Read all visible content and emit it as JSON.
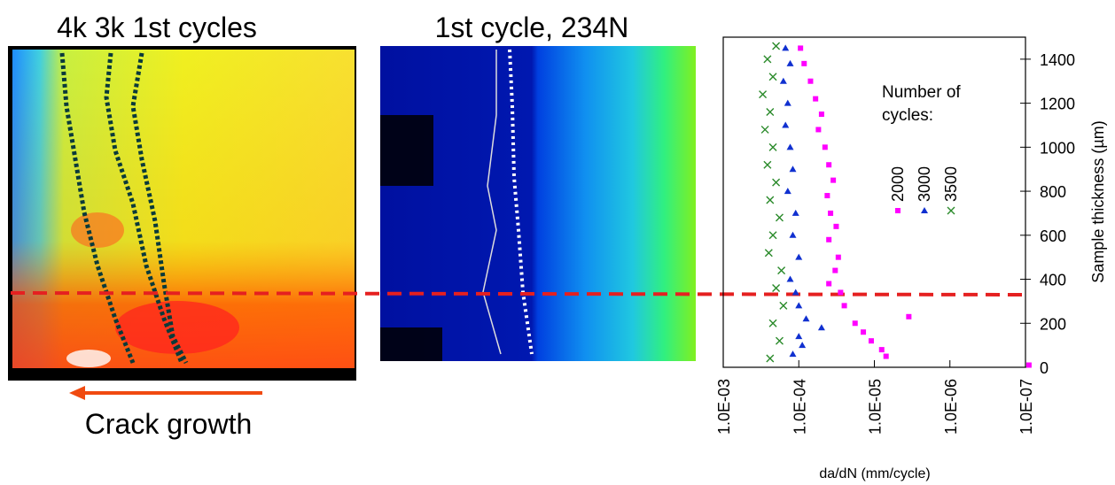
{
  "panels": [
    {
      "title": "4k 3k 1st cycles",
      "caption": "Crack growth"
    },
    {
      "title": "1st cycle, 234N"
    }
  ],
  "chart_data": {
    "type": "scatter",
    "xlabel": "da/dN (mm/cycle)",
    "ylabel": "Sample thickness (µm)",
    "legend_title": "Number of cycles:",
    "xscale": "log",
    "y_axis_side": "right",
    "xlim": [
      0.001,
      1e-07
    ],
    "ylim": [
      0,
      1500
    ],
    "xticks": [
      {
        "value": 0.001,
        "label": "1.0E-03"
      },
      {
        "value": 0.0001,
        "label": "1.0E-04"
      },
      {
        "value": 1e-05,
        "label": "1.0E-05"
      },
      {
        "value": 1e-06,
        "label": "1.0E-06"
      },
      {
        "value": 1e-07,
        "label": "1.0E-07"
      }
    ],
    "yticks": [
      0,
      200,
      400,
      600,
      800,
      1000,
      1200,
      1400
    ],
    "series": [
      {
        "name": "2000",
        "color": "#ff00ff",
        "marker": "square",
        "x": [
          9.5e-05,
          8.5e-05,
          7e-05,
          6e-05,
          5e-05,
          5.5e-05,
          4.5e-05,
          4e-05,
          3.5e-05,
          4.2e-05,
          3.8e-05,
          3.2e-05,
          4e-05,
          3e-05,
          3.3e-05,
          4e-05,
          2.8e-05,
          2.5e-05,
          3.5e-06,
          1.8e-05,
          1.4e-05,
          1.1e-05,
          8e-06,
          7e-06,
          9e-08
        ],
        "y": [
          1450,
          1380,
          1300,
          1220,
          1150,
          1080,
          1000,
          920,
          850,
          780,
          700,
          640,
          580,
          500,
          440,
          380,
          340,
          280,
          230,
          200,
          160,
          120,
          80,
          50,
          10
        ]
      },
      {
        "name": "3000",
        "color": "#1030d0",
        "marker": "triangle",
        "x": [
          0.00015,
          0.00013,
          0.00016,
          0.00014,
          0.00015,
          0.00013,
          0.00012,
          0.00014,
          0.00011,
          0.00012,
          0.0001,
          0.00013,
          0.00011,
          0.0001,
          8e-05,
          5e-05,
          0.0001,
          9e-05,
          0.00012
        ],
        "y": [
          1450,
          1380,
          1300,
          1200,
          1100,
          1000,
          900,
          800,
          700,
          600,
          500,
          400,
          340,
          280,
          220,
          180,
          140,
          100,
          60
        ]
      },
      {
        "name": "3500",
        "color": "#2a8a2a",
        "marker": "x",
        "x": [
          0.0002,
          0.00026,
          0.00022,
          0.0003,
          0.00024,
          0.00028,
          0.00022,
          0.00026,
          0.0002,
          0.00024,
          0.00018,
          0.00022,
          0.00025,
          0.00017,
          0.0002,
          0.00016,
          0.00022,
          0.00018,
          0.00024
        ],
        "y": [
          1460,
          1400,
          1320,
          1240,
          1160,
          1080,
          1000,
          920,
          840,
          760,
          680,
          600,
          520,
          440,
          360,
          280,
          200,
          120,
          40
        ]
      }
    ]
  }
}
